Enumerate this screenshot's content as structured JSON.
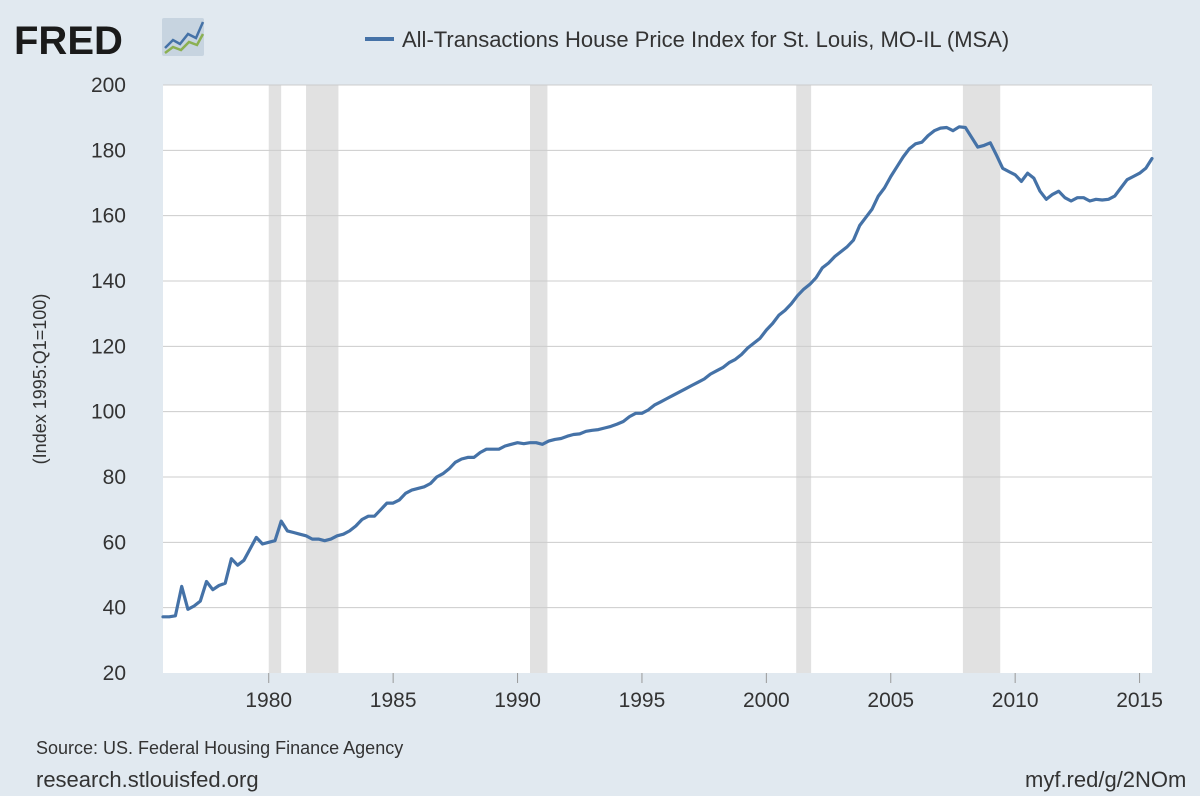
{
  "branding": {
    "logo_text": "FRED",
    "source_text": "Source: US. Federal Housing Finance Agency",
    "website_text": "research.stlouisfed.org",
    "short_url_text": "myf.red/g/2NOm"
  },
  "colors": {
    "background": "#e1e9f0",
    "plot_background": "#ffffff",
    "series": "#4572a7",
    "recession": "#e1e1e1",
    "grid": "#cccccc"
  },
  "chart_data": {
    "type": "line",
    "title": "",
    "xlabel": "",
    "ylabel": "(Index 1995:Q1=100)",
    "ylim": [
      20,
      200
    ],
    "xlim": [
      1975.75,
      2015.5
    ],
    "y_ticks": [
      20,
      40,
      60,
      80,
      100,
      120,
      140,
      160,
      180,
      200
    ],
    "x_ticks": [
      1980,
      1985,
      1990,
      1995,
      2000,
      2005,
      2010,
      2015
    ],
    "grid": true,
    "legend_position": "top",
    "recessions": [
      [
        1980.0,
        1980.5
      ],
      [
        1981.5,
        1982.8
      ],
      [
        1990.5,
        1991.2
      ],
      [
        2001.2,
        2001.8
      ],
      [
        2007.9,
        2009.4
      ]
    ],
    "series": [
      {
        "name": "All-Transactions House Price Index for St. Louis, MO-IL (MSA)",
        "color": "#4572a7",
        "points": [
          [
            1975.75,
            37.2
          ],
          [
            1976.0,
            37.2
          ],
          [
            1976.25,
            37.5
          ],
          [
            1976.5,
            46.5
          ],
          [
            1976.75,
            39.5
          ],
          [
            1977.0,
            40.5
          ],
          [
            1977.25,
            42.0
          ],
          [
            1977.5,
            48.0
          ],
          [
            1977.75,
            45.5
          ],
          [
            1978.0,
            46.8
          ],
          [
            1978.25,
            47.5
          ],
          [
            1978.5,
            55.0
          ],
          [
            1978.75,
            53.0
          ],
          [
            1979.0,
            54.5
          ],
          [
            1979.25,
            58.0
          ],
          [
            1979.5,
            61.5
          ],
          [
            1979.75,
            59.5
          ],
          [
            1980.0,
            60.0
          ],
          [
            1980.25,
            60.5
          ],
          [
            1980.5,
            66.5
          ],
          [
            1980.75,
            63.5
          ],
          [
            1981.0,
            63.0
          ],
          [
            1981.25,
            62.5
          ],
          [
            1981.5,
            62.0
          ],
          [
            1981.75,
            61.0
          ],
          [
            1982.0,
            61.0
          ],
          [
            1982.25,
            60.5
          ],
          [
            1982.5,
            61.0
          ],
          [
            1982.75,
            62.0
          ],
          [
            1983.0,
            62.5
          ],
          [
            1983.25,
            63.5
          ],
          [
            1983.5,
            65.0
          ],
          [
            1983.75,
            67.0
          ],
          [
            1984.0,
            68.0
          ],
          [
            1984.25,
            68.0
          ],
          [
            1984.5,
            70.0
          ],
          [
            1984.75,
            72.0
          ],
          [
            1985.0,
            72.0
          ],
          [
            1985.25,
            73.0
          ],
          [
            1985.5,
            75.0
          ],
          [
            1985.75,
            76.0
          ],
          [
            1986.0,
            76.5
          ],
          [
            1986.25,
            77.0
          ],
          [
            1986.5,
            78.0
          ],
          [
            1986.75,
            80.0
          ],
          [
            1987.0,
            81.0
          ],
          [
            1987.25,
            82.5
          ],
          [
            1987.5,
            84.5
          ],
          [
            1987.75,
            85.5
          ],
          [
            1988.0,
            86.0
          ],
          [
            1988.25,
            86.0
          ],
          [
            1988.5,
            87.5
          ],
          [
            1988.75,
            88.5
          ],
          [
            1989.0,
            88.5
          ],
          [
            1989.25,
            88.5
          ],
          [
            1989.5,
            89.5
          ],
          [
            1989.75,
            90.0
          ],
          [
            1990.0,
            90.5
          ],
          [
            1990.25,
            90.2
          ],
          [
            1990.5,
            90.5
          ],
          [
            1990.75,
            90.5
          ],
          [
            1991.0,
            90.0
          ],
          [
            1991.25,
            91.0
          ],
          [
            1991.5,
            91.5
          ],
          [
            1991.75,
            91.8
          ],
          [
            1992.0,
            92.5
          ],
          [
            1992.25,
            93.0
          ],
          [
            1992.5,
            93.2
          ],
          [
            1992.75,
            94.0
          ],
          [
            1993.0,
            94.3
          ],
          [
            1993.25,
            94.5
          ],
          [
            1993.5,
            95.0
          ],
          [
            1993.75,
            95.5
          ],
          [
            1994.0,
            96.2
          ],
          [
            1994.25,
            97.0
          ],
          [
            1994.5,
            98.5
          ],
          [
            1994.75,
            99.5
          ],
          [
            1995.0,
            99.5
          ],
          [
            1995.25,
            100.5
          ],
          [
            1995.5,
            102.0
          ],
          [
            1995.75,
            103.0
          ],
          [
            1996.0,
            104.0
          ],
          [
            1996.25,
            105.0
          ],
          [
            1996.5,
            106.0
          ],
          [
            1996.75,
            107.0
          ],
          [
            1997.0,
            108.0
          ],
          [
            1997.25,
            109.0
          ],
          [
            1997.5,
            110.0
          ],
          [
            1997.75,
            111.5
          ],
          [
            1998.0,
            112.5
          ],
          [
            1998.25,
            113.5
          ],
          [
            1998.5,
            115.0
          ],
          [
            1998.75,
            116.0
          ],
          [
            1999.0,
            117.5
          ],
          [
            1999.25,
            119.5
          ],
          [
            1999.5,
            121.0
          ],
          [
            1999.75,
            122.5
          ],
          [
            2000.0,
            125.0
          ],
          [
            2000.25,
            127.0
          ],
          [
            2000.5,
            129.5
          ],
          [
            2000.75,
            131.0
          ],
          [
            2001.0,
            133.0
          ],
          [
            2001.25,
            135.5
          ],
          [
            2001.5,
            137.5
          ],
          [
            2001.75,
            139.0
          ],
          [
            2002.0,
            141.0
          ],
          [
            2002.25,
            144.0
          ],
          [
            2002.5,
            145.5
          ],
          [
            2002.75,
            147.5
          ],
          [
            2003.0,
            149.0
          ],
          [
            2003.25,
            150.5
          ],
          [
            2003.5,
            152.5
          ],
          [
            2003.75,
            157.0
          ],
          [
            2004.0,
            159.5
          ],
          [
            2004.25,
            162.0
          ],
          [
            2004.5,
            166.0
          ],
          [
            2004.75,
            168.5
          ],
          [
            2005.0,
            172.0
          ],
          [
            2005.25,
            175.0
          ],
          [
            2005.5,
            178.0
          ],
          [
            2005.75,
            180.5
          ],
          [
            2006.0,
            182.0
          ],
          [
            2006.25,
            182.5
          ],
          [
            2006.5,
            184.5
          ],
          [
            2006.75,
            186.0
          ],
          [
            2007.0,
            186.8
          ],
          [
            2007.25,
            187.0
          ],
          [
            2007.5,
            186.0
          ],
          [
            2007.75,
            187.2
          ],
          [
            2008.0,
            187.0
          ],
          [
            2008.25,
            184.0
          ],
          [
            2008.5,
            181.0
          ],
          [
            2008.75,
            181.5
          ],
          [
            2009.0,
            182.3
          ],
          [
            2009.25,
            178.5
          ],
          [
            2009.5,
            174.5
          ],
          [
            2009.75,
            173.5
          ],
          [
            2010.0,
            172.5
          ],
          [
            2010.25,
            170.5
          ],
          [
            2010.5,
            173.0
          ],
          [
            2010.75,
            171.5
          ],
          [
            2011.0,
            167.5
          ],
          [
            2011.25,
            165.0
          ],
          [
            2011.5,
            166.5
          ],
          [
            2011.75,
            167.5
          ],
          [
            2012.0,
            165.5
          ],
          [
            2012.25,
            164.5
          ],
          [
            2012.5,
            165.5
          ],
          [
            2012.75,
            165.5
          ],
          [
            2013.0,
            164.5
          ],
          [
            2013.25,
            165.0
          ],
          [
            2013.5,
            164.8
          ],
          [
            2013.75,
            165.0
          ],
          [
            2014.0,
            166.0
          ],
          [
            2014.25,
            168.5
          ],
          [
            2014.5,
            171.0
          ],
          [
            2014.75,
            172.0
          ],
          [
            2015.0,
            173.0
          ],
          [
            2015.25,
            174.5
          ],
          [
            2015.5,
            177.5
          ]
        ]
      }
    ]
  }
}
